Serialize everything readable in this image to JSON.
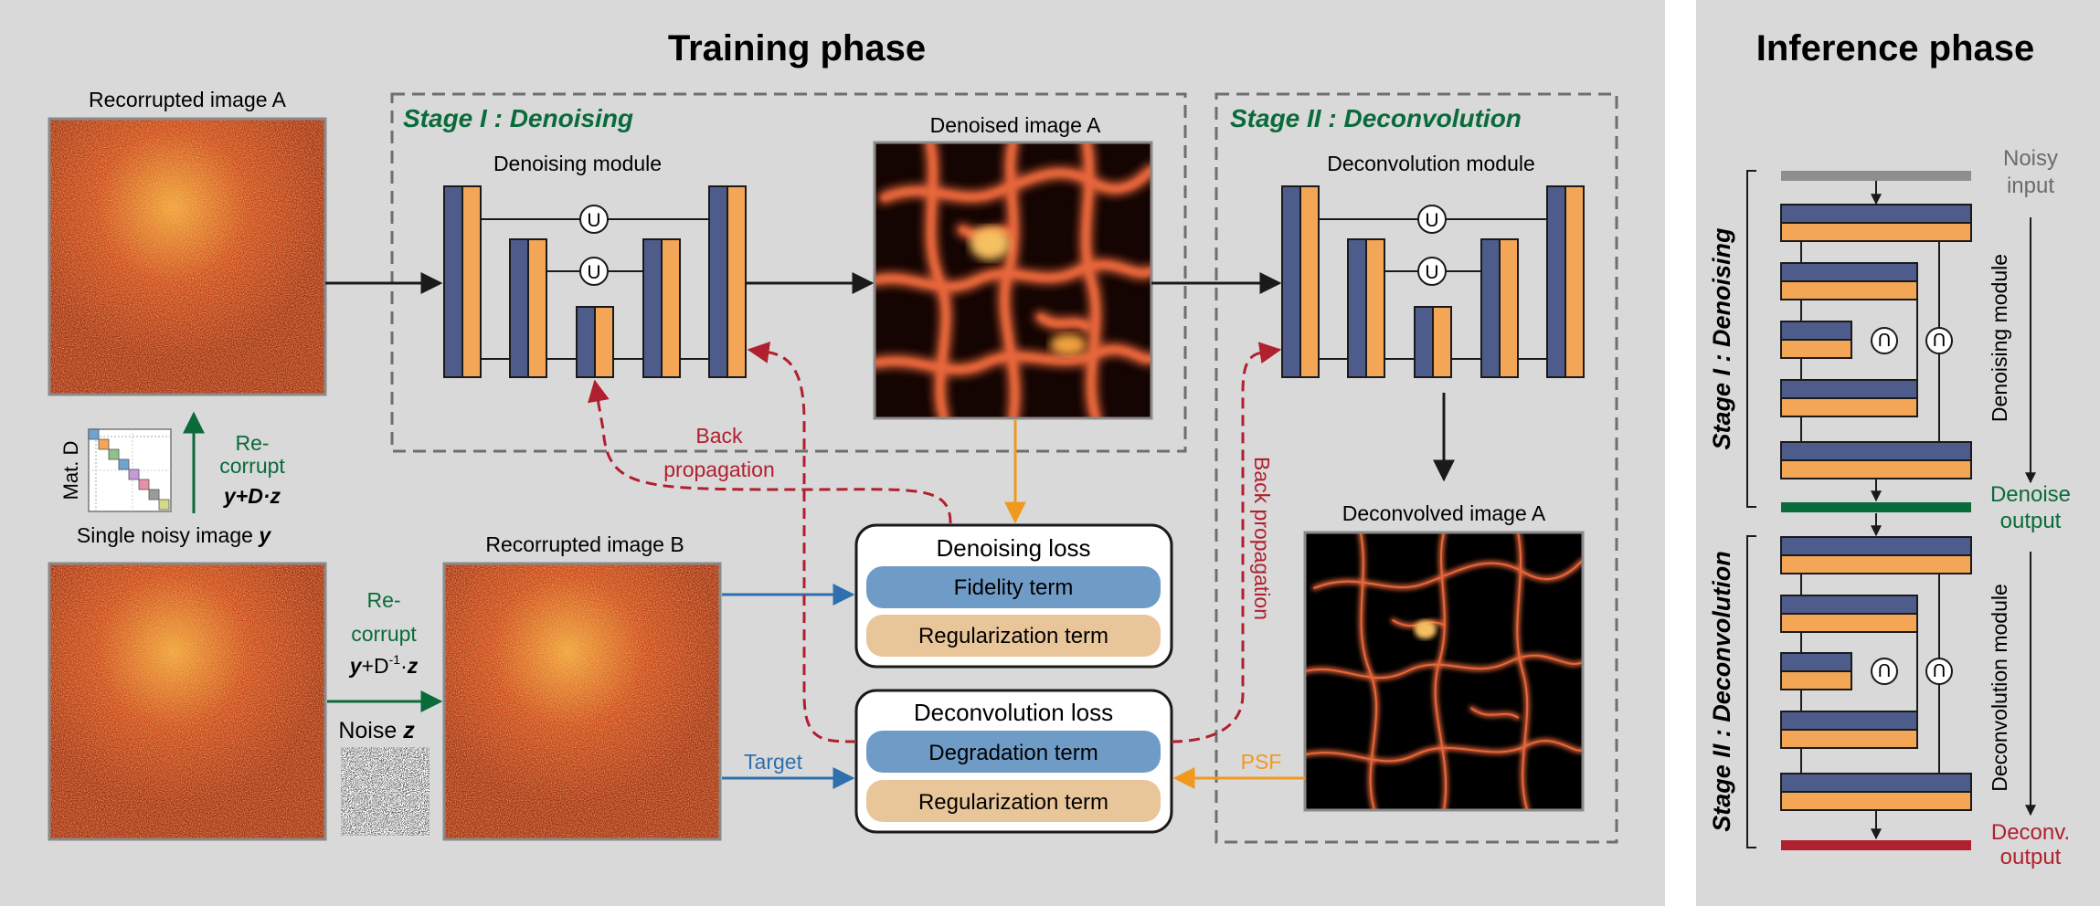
{
  "training": {
    "title": "Training phase",
    "stage1_title": "Stage I : Denoising",
    "stage2_title": "Stage II : Deconvolution",
    "recorrupted_a": "Recorrupted image A",
    "recorrupted_b": "Recorrupted image B",
    "single_noisy": "Single noisy image ",
    "single_noisy_var": "y",
    "mat_d": "Mat. D",
    "recorrupt_up_l1": "Re-",
    "recorrupt_up_l2": "corrupt",
    "recorrupt_up_formula": "y+D·z",
    "recorrupt_right_l1": "Re-",
    "recorrupt_right_l2": "corrupt",
    "recorrupt_right_formula_a": "y",
    "recorrupt_right_formula_b": "+D",
    "recorrupt_right_formula_sup": "-1",
    "recorrupt_right_formula_c": "·",
    "recorrupt_right_formula_d": "z",
    "noise_label": "Noise ",
    "noise_var": "z",
    "denoising_module": "Denoising module",
    "denoised_image": "Denoised image A",
    "deconvolution_module": "Deconvolution module",
    "deconvolved_image": "Deconvolved image A",
    "unet_symbol": "U",
    "back_prop_1": "Back",
    "back_prop_2": "propagation",
    "back_prop_vertical": "Back propagation",
    "denoising_loss": "Denoising loss",
    "fidelity_term": "Fidelity term",
    "regularization_term": "Regularization term",
    "deconvolution_loss": "Deconvolution loss",
    "degradation_term": "Degradation term",
    "target": "Target",
    "psf": "PSF"
  },
  "inference": {
    "title": "Inference phase",
    "noisy_input_1": "Noisy",
    "noisy_input_2": "input",
    "stage1_vertical": "Stage I : Denoising",
    "stage2_vertical": "Stage II : Deconvolution",
    "denoising_module_vertical": "Denoising module",
    "deconvolution_module_vertical": "Deconvolution module",
    "denoise_output_1": "Denoise",
    "denoise_output_2": "output",
    "deconv_output_1": "Deconv.",
    "deconv_output_2": "output",
    "concat_symbol": "U"
  },
  "colors": {
    "background": "#d9d9d9",
    "blue_block": "#4e5c8c",
    "orange_block": "#f2a656",
    "green": "#0a6b3a",
    "red": "#b0202e",
    "blue_arrow": "#2f6fad",
    "orange_arrow": "#ef9a1f",
    "fidelity_fill": "#6f9cc6",
    "regularization_fill": "#e9c59a"
  }
}
